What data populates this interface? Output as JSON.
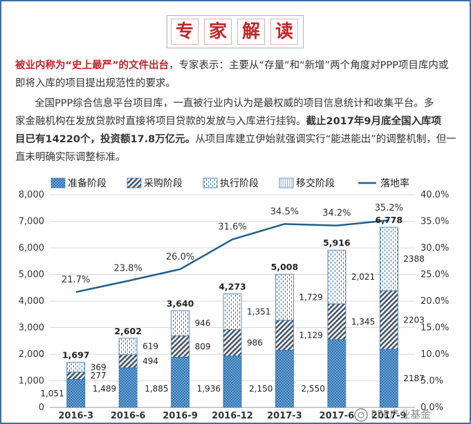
{
  "title_chars": [
    "专",
    "家",
    "解",
    "读"
  ],
  "para1": {
    "highlight": "被业内称为“史上最严”的文件出台",
    "rest_line1": "，专家表示：主要从“存量”和“新增”两个角度对PPP项目库内或",
    "line2": "即将入库的项目提出规范性的要求。"
  },
  "para2": {
    "line1": "全国PPP综合信息平台项目库，一直被行业内认为是最权威的项目信息统计和收集平台。多",
    "line2_normal": "家金融机构在发放贷款时直接将项目贷款的发放与入库进行挂钩。",
    "line2_bold": "截止2017年9月底全国入库项",
    "line3_bold": "目已有14220个，投资额17.8万亿元。",
    "line3_normal": "从项目库建立伊始就强调实行“能进能出”的调整机制，但一",
    "line4": "直未明确实际调整标准。"
  },
  "watermark": "PPP产业基金",
  "chart_data": {
    "type": "bar",
    "stacked": true,
    "categories": [
      "2016-3",
      "2016-6",
      "2016-9",
      "2016-12",
      "2017-3",
      "2017-6",
      "2017-9"
    ],
    "series": [
      {
        "name": "准备阶段",
        "values": [
          1051,
          1489,
          1885,
          1936,
          2150,
          2550,
          2187
        ],
        "color": "#2e75b6",
        "pattern": "dots"
      },
      {
        "name": "采购阶段",
        "values": [
          277,
          494,
          809,
          986,
          1129,
          1345,
          2203
        ],
        "color": "#44546a",
        "pattern": "diagonal"
      },
      {
        "name": "执行阶段",
        "values": [
          369,
          619,
          946,
          1351,
          1729,
          2021,
          2388
        ],
        "color": "#2e75b6",
        "pattern": "dashes"
      },
      {
        "name": "移交阶段",
        "values": [
          0,
          0,
          0,
          0,
          0,
          0,
          0
        ],
        "color": "#2e75b6",
        "pattern": "fine-dots"
      }
    ],
    "series_labels": [
      [
        "1,051",
        "1,489",
        "1,885",
        "1,936",
        "2,150",
        "2,550",
        "2187"
      ],
      [
        "277",
        "494",
        "809",
        "986",
        "1,129",
        "1,345",
        "2203"
      ],
      [
        "369",
        "619",
        "946",
        "1,351",
        "1,729",
        "2,021",
        "2388"
      ]
    ],
    "totals": [
      1697,
      2602,
      3640,
      4273,
      5008,
      5916,
      6778
    ],
    "total_labels": [
      "1,697",
      "2,602",
      "3,640",
      "4,273",
      "5,008",
      "5,916",
      "6,778"
    ],
    "line_series": {
      "name": "落地率",
      "values": [
        21.7,
        23.8,
        26.0,
        31.6,
        34.5,
        34.2,
        35.2
      ],
      "labels": [
        "21.7%",
        "23.8%",
        "26.0%",
        "31.6%",
        "34.5%",
        "34.2%",
        "35.2%"
      ],
      "color": "#1f5f8b"
    },
    "ylim_left": [
      0,
      8000
    ],
    "yticks_left": [
      "0",
      "1,000",
      "2,000",
      "3,000",
      "4,000",
      "5,000",
      "6,000",
      "7,000",
      "8,000"
    ],
    "ylim_right": [
      0,
      40
    ],
    "yticks_right": [
      "0.0%",
      "5.0%",
      "10.0%",
      "15.0%",
      "20.0%",
      "25.0%",
      "30.0%",
      "35.0%",
      "40.0%"
    ],
    "legend_position": "top",
    "grid": true
  }
}
